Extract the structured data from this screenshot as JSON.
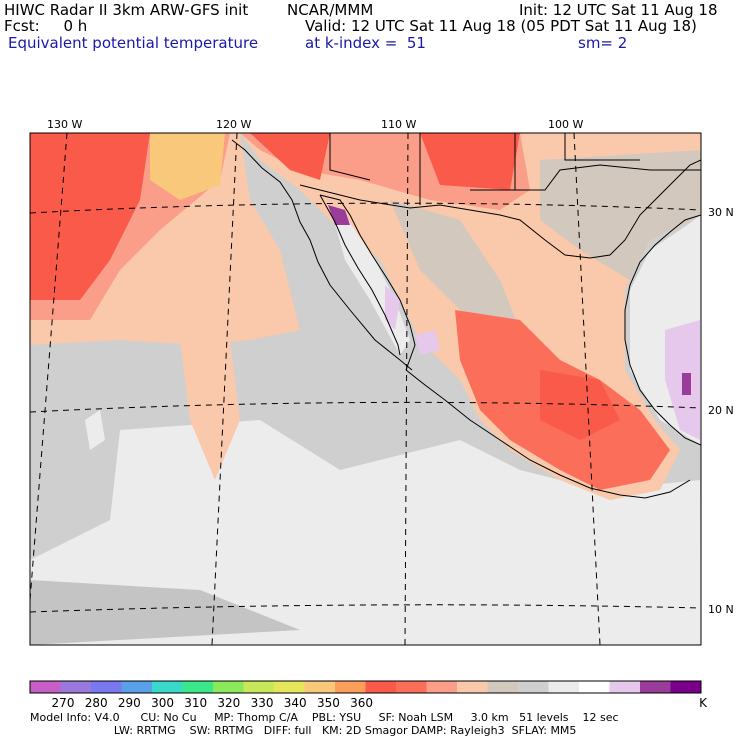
{
  "header": {
    "model_title": "HIWC Radar II 3km ARW-GFS init",
    "org": "NCAR/MMM",
    "init": "Init: 12 UTC Sat 11 Aug 18",
    "fcst": "Fcst:     0 h",
    "valid": "Valid: 12 UTC Sat 11 Aug 18 (05 PDT Sat 11 Aug 18)",
    "field": "Equivalent potential temperature",
    "level": "at k-index =  51",
    "smooth": "sm= 2"
  },
  "map": {
    "longitude_labels": [
      "130 W",
      "120 W",
      "110 W",
      "100 W"
    ],
    "latitude_labels": [
      "30 N",
      "20 N",
      "10 N"
    ]
  },
  "legend": {
    "labels": [
      "270",
      "280",
      "290",
      "300",
      "310",
      "320",
      "330",
      "340",
      "350",
      "360",
      "K"
    ],
    "colors": [
      "#c85ec8",
      "#9a78dc",
      "#7a78ee",
      "#5aa0e8",
      "#3ad8c8",
      "#3ae88a",
      "#8ae85a",
      "#c8e85a",
      "#e6e65a",
      "#fac87a",
      "#fa9e5a",
      "#fa5a4a",
      "#fa6e5a",
      "#fa9e8a",
      "#fac8aa",
      "#d2c8be",
      "#cfcfcf",
      "#ececec",
      "#ffffff",
      "#e6c8ec",
      "#9a3c9a",
      "#7a008a"
    ]
  },
  "footer": {
    "line1": "Model Info: V4.0      CU: No Cu     MP: Thomp C/A    PBL: YSU     SF: Noah LSM     3.0 km   51 levels    12 sec",
    "line2": "                        LW: RRTMG    SW: RRTMG   DIFF: full   KM: 2D Smagor DAMP: Rayleigh3  SFLAY: MM5"
  }
}
